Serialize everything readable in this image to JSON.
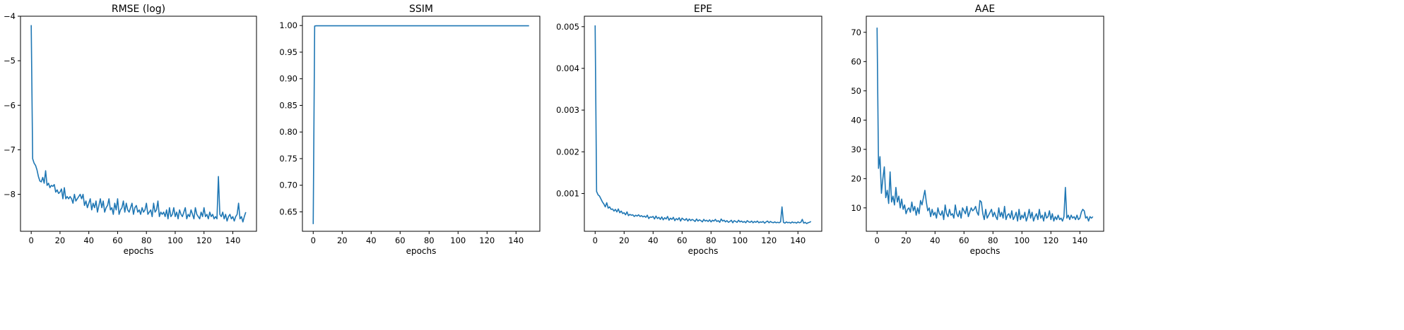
{
  "chart_data": [
    {
      "type": "line",
      "title": "RMSE (log)",
      "xlabel": "epochs",
      "ylabel": "",
      "xlim": [
        -7.45,
        156.45
      ],
      "ylim": [
        -8.83,
        -4.0
      ],
      "xticks": [
        0,
        20,
        40,
        60,
        80,
        100,
        120,
        140
      ],
      "yticks": [
        -8,
        -7,
        -6,
        -5,
        -4
      ],
      "ytick_labels": [
        "−8",
        "−7",
        "−6",
        "−5",
        "−4"
      ],
      "color": "#1f77b4",
      "x": [
        0,
        1,
        2,
        3,
        4,
        5,
        6,
        7,
        8,
        9,
        10,
        11,
        12,
        13,
        14,
        15,
        16,
        17,
        18,
        19,
        20,
        21,
        22,
        23,
        24,
        25,
        26,
        27,
        28,
        29,
        30,
        31,
        32,
        33,
        34,
        35,
        36,
        37,
        38,
        39,
        40,
        41,
        42,
        43,
        44,
        45,
        46,
        47,
        48,
        49,
        50,
        51,
        52,
        53,
        54,
        55,
        56,
        57,
        58,
        59,
        60,
        61,
        62,
        63,
        64,
        65,
        66,
        67,
        68,
        69,
        70,
        71,
        72,
        73,
        74,
        75,
        76,
        77,
        78,
        79,
        80,
        81,
        82,
        83,
        84,
        85,
        86,
        87,
        88,
        89,
        90,
        91,
        92,
        93,
        94,
        95,
        96,
        97,
        98,
        99,
        100,
        101,
        102,
        103,
        104,
        105,
        106,
        107,
        108,
        109,
        110,
        111,
        112,
        113,
        114,
        115,
        116,
        117,
        118,
        119,
        120,
        121,
        122,
        123,
        124,
        125,
        126,
        127,
        128,
        129,
        130,
        131,
        132,
        133,
        134,
        135,
        136,
        137,
        138,
        139,
        140,
        141,
        142,
        143,
        144,
        145,
        146,
        147,
        148,
        149
      ],
      "y": [
        -4.2,
        -7.2,
        -7.3,
        -7.35,
        -7.45,
        -7.6,
        -7.7,
        -7.72,
        -7.62,
        -7.75,
        -7.47,
        -7.8,
        -7.75,
        -7.85,
        -7.8,
        -7.82,
        -7.78,
        -7.95,
        -7.9,
        -7.98,
        -7.95,
        -7.88,
        -8.1,
        -7.85,
        -8.1,
        -8.05,
        -8.1,
        -8.05,
        -8.1,
        -8.2,
        -8.0,
        -8.15,
        -8.1,
        -8.05,
        -8.0,
        -8.1,
        -8.0,
        -8.25,
        -8.15,
        -8.3,
        -8.2,
        -8.1,
        -8.35,
        -8.2,
        -8.3,
        -8.15,
        -8.4,
        -8.25,
        -8.1,
        -8.3,
        -8.15,
        -8.4,
        -8.3,
        -8.25,
        -8.1,
        -8.35,
        -8.3,
        -8.45,
        -8.2,
        -8.35,
        -8.1,
        -8.45,
        -8.35,
        -8.3,
        -8.15,
        -8.4,
        -8.2,
        -8.35,
        -8.4,
        -8.3,
        -8.2,
        -8.45,
        -8.3,
        -8.25,
        -8.4,
        -8.35,
        -8.45,
        -8.3,
        -8.4,
        -8.35,
        -8.2,
        -8.45,
        -8.4,
        -8.35,
        -8.5,
        -8.2,
        -8.4,
        -8.35,
        -8.15,
        -8.5,
        -8.4,
        -8.45,
        -8.4,
        -8.5,
        -8.35,
        -8.55,
        -8.3,
        -8.5,
        -8.45,
        -8.3,
        -8.5,
        -8.4,
        -8.55,
        -8.35,
        -8.45,
        -8.5,
        -8.4,
        -8.3,
        -8.55,
        -8.45,
        -8.5,
        -8.35,
        -8.45,
        -8.55,
        -8.3,
        -8.45,
        -8.5,
        -8.55,
        -8.4,
        -8.5,
        -8.3,
        -8.5,
        -8.45,
        -8.55,
        -8.4,
        -8.5,
        -8.45,
        -8.55,
        -8.5,
        -8.55,
        -7.6,
        -8.45,
        -8.5,
        -8.4,
        -8.55,
        -8.45,
        -8.6,
        -8.5,
        -8.45,
        -8.55,
        -8.5,
        -8.6,
        -8.5,
        -8.45,
        -8.2,
        -8.55,
        -8.5,
        -8.62,
        -8.5,
        -8.4
      ]
    },
    {
      "type": "line",
      "title": "SSIM",
      "xlabel": "epochs",
      "ylabel": "",
      "xlim": [
        -7.45,
        156.45
      ],
      "ylim": [
        0.6135,
        1.0175
      ],
      "xticks": [
        0,
        20,
        40,
        60,
        80,
        100,
        120,
        140
      ],
      "yticks": [
        0.65,
        0.7,
        0.75,
        0.8,
        0.85,
        0.9,
        0.95,
        1.0
      ],
      "ytick_labels": [
        "0.65",
        "0.70",
        "0.75",
        "0.80",
        "0.85",
        "0.90",
        "0.95",
        "1.00"
      ],
      "color": "#1f77b4",
      "x": [
        0,
        1,
        2,
        149
      ],
      "y": [
        0.627,
        0.999,
        0.9995,
        0.9995
      ]
    },
    {
      "type": "line",
      "title": "EPE",
      "xlabel": "epochs",
      "ylabel": "",
      "xlim": [
        -7.45,
        156.45
      ],
      "ylim": [
        9.5e-05,
        0.00525
      ],
      "xticks": [
        0,
        20,
        40,
        60,
        80,
        100,
        120,
        140
      ],
      "yticks": [
        0.001,
        0.002,
        0.003,
        0.004,
        0.005
      ],
      "ytick_labels": [
        "0.001",
        "0.002",
        "0.003",
        "0.004",
        "0.005"
      ],
      "color": "#1f77b4",
      "x": [
        0,
        1,
        2,
        3,
        4,
        5,
        6,
        7,
        8,
        9,
        10,
        11,
        12,
        13,
        14,
        15,
        16,
        17,
        18,
        19,
        20,
        21,
        22,
        23,
        24,
        25,
        26,
        27,
        28,
        29,
        30,
        31,
        32,
        33,
        34,
        35,
        36,
        37,
        38,
        39,
        40,
        41,
        42,
        43,
        44,
        45,
        46,
        47,
        48,
        49,
        50,
        51,
        52,
        53,
        54,
        55,
        56,
        57,
        58,
        59,
        60,
        61,
        62,
        63,
        64,
        65,
        66,
        67,
        68,
        69,
        70,
        71,
        72,
        73,
        74,
        75,
        76,
        77,
        78,
        79,
        80,
        81,
        82,
        83,
        84,
        85,
        86,
        87,
        88,
        89,
        90,
        91,
        92,
        93,
        94,
        95,
        96,
        97,
        98,
        99,
        100,
        101,
        102,
        103,
        104,
        105,
        106,
        107,
        108,
        109,
        110,
        111,
        112,
        113,
        114,
        115,
        116,
        117,
        118,
        119,
        120,
        121,
        122,
        123,
        124,
        125,
        126,
        127,
        128,
        129,
        130,
        131,
        132,
        133,
        134,
        135,
        136,
        137,
        138,
        139,
        140,
        141,
        142,
        143,
        144,
        145,
        146,
        147,
        148,
        149
      ],
      "y": [
        0.00503,
        0.00105,
        0.00097,
        0.00094,
        0.00087,
        0.0008,
        0.00075,
        0.00068,
        0.00078,
        0.00065,
        0.00068,
        0.00062,
        0.00063,
        0.00058,
        0.00062,
        0.00056,
        0.00063,
        0.00054,
        0.00058,
        0.00052,
        0.00054,
        0.00049,
        0.00056,
        0.00047,
        0.0005,
        0.00048,
        0.00049,
        0.00045,
        0.00048,
        0.00046,
        0.00049,
        0.00045,
        0.00047,
        0.00044,
        0.00046,
        0.00043,
        0.00048,
        0.0004,
        0.00044,
        0.00043,
        0.00045,
        0.00039,
        0.00046,
        0.0004,
        0.00043,
        0.00038,
        0.00044,
        0.00037,
        0.00042,
        0.00039,
        0.00045,
        0.00036,
        0.00041,
        0.00038,
        0.00043,
        0.00035,
        0.0004,
        0.00037,
        0.00042,
        0.00034,
        0.00041,
        0.00038,
        0.00036,
        0.0004,
        0.00034,
        0.00039,
        0.00035,
        0.00038,
        0.00036,
        0.00033,
        0.00039,
        0.00034,
        0.00037,
        0.00035,
        0.00032,
        0.00038,
        0.00034,
        0.00036,
        0.00033,
        0.00037,
        0.00032,
        0.00036,
        0.00034,
        0.00038,
        0.00033,
        0.00035,
        0.00031,
        0.00039,
        0.00034,
        0.00036,
        0.00032,
        0.00035,
        0.00031,
        0.00033,
        0.00036,
        0.0003,
        0.00035,
        0.00033,
        0.00031,
        0.00036,
        0.00032,
        0.00034,
        0.00031,
        0.00033,
        0.0003,
        0.00035,
        0.00032,
        0.00031,
        0.00034,
        0.0003,
        0.00033,
        0.00031,
        0.00034,
        0.0003,
        0.00032,
        0.00031,
        0.00033,
        0.00029,
        0.00032,
        0.00034,
        0.0003,
        0.00033,
        0.00031,
        0.0003,
        0.00032,
        0.0003,
        0.00031,
        0.0003,
        0.00032,
        0.00068,
        0.00031,
        0.00029,
        0.00032,
        0.0003,
        0.00031,
        0.00029,
        0.00032,
        0.0003,
        0.00031,
        0.00029,
        0.00032,
        0.0003,
        0.00031,
        0.00038,
        0.00029,
        0.00031,
        0.00028,
        0.0003,
        0.00031,
        0.00033
      ]
    },
    {
      "type": "line",
      "title": "AAE",
      "xlabel": "epochs",
      "ylabel": "",
      "xlim": [
        -7.45,
        156.45
      ],
      "ylim": [
        2.0,
        75.5
      ],
      "xticks": [
        0,
        20,
        40,
        60,
        80,
        100,
        120,
        140
      ],
      "yticks": [
        10,
        20,
        30,
        40,
        50,
        60,
        70
      ],
      "ytick_labels": [
        "10",
        "20",
        "30",
        "40",
        "50",
        "60",
        "70"
      ],
      "color": "#1f77b4",
      "x": [
        0,
        1,
        2,
        3,
        4,
        5,
        6,
        7,
        8,
        9,
        10,
        11,
        12,
        13,
        14,
        15,
        16,
        17,
        18,
        19,
        20,
        21,
        22,
        23,
        24,
        25,
        26,
        27,
        28,
        29,
        30,
        31,
        32,
        33,
        34,
        35,
        36,
        37,
        38,
        39,
        40,
        41,
        42,
        43,
        44,
        45,
        46,
        47,
        48,
        49,
        50,
        51,
        52,
        53,
        54,
        55,
        56,
        57,
        58,
        59,
        60,
        61,
        62,
        63,
        64,
        65,
        66,
        67,
        68,
        69,
        70,
        71,
        72,
        73,
        74,
        75,
        76,
        77,
        78,
        79,
        80,
        81,
        82,
        83,
        84,
        85,
        86,
        87,
        88,
        89,
        90,
        91,
        92,
        93,
        94,
        95,
        96,
        97,
        98,
        99,
        100,
        101,
        102,
        103,
        104,
        105,
        106,
        107,
        108,
        109,
        110,
        111,
        112,
        113,
        114,
        115,
        116,
        117,
        118,
        119,
        120,
        121,
        122,
        123,
        124,
        125,
        126,
        127,
        128,
        129,
        130,
        131,
        132,
        133,
        134,
        135,
        136,
        137,
        138,
        139,
        140,
        141,
        142,
        143,
        144,
        145,
        146,
        147,
        148,
        149
      ],
      "y": [
        71.6,
        23.5,
        27.5,
        15.0,
        20.0,
        24.0,
        13.5,
        16.0,
        11.5,
        22.3,
        12.0,
        14.0,
        11.0,
        17.0,
        12.0,
        14.0,
        10.0,
        13.0,
        9.5,
        11.0,
        8.0,
        9.5,
        10.0,
        8.5,
        12.0,
        9.0,
        10.5,
        7.5,
        10.0,
        8.0,
        12.5,
        11.0,
        13.5,
        16.0,
        12.0,
        9.0,
        10.0,
        7.0,
        9.5,
        7.5,
        8.5,
        6.5,
        10.0,
        8.0,
        7.5,
        9.0,
        6.0,
        11.0,
        8.0,
        7.0,
        9.5,
        7.5,
        8.0,
        6.5,
        11.0,
        8.0,
        7.0,
        9.0,
        6.5,
        10.0,
        9.0,
        8.0,
        10.5,
        7.0,
        8.5,
        10.0,
        9.0,
        9.5,
        10.5,
        8.5,
        7.5,
        12.5,
        12.0,
        8.0,
        6.0,
        9.5,
        6.5,
        7.5,
        8.5,
        9.5,
        7.0,
        8.5,
        7.0,
        6.0,
        10.0,
        7.0,
        8.5,
        6.5,
        10.5,
        6.0,
        7.5,
        8.0,
        6.5,
        9.0,
        6.0,
        7.0,
        8.5,
        5.5,
        9.5,
        6.0,
        7.5,
        6.5,
        8.5,
        5.5,
        7.0,
        9.5,
        6.5,
        8.5,
        5.5,
        7.0,
        8.0,
        6.0,
        9.5,
        6.5,
        7.5,
        5.5,
        8.5,
        6.5,
        7.0,
        9.0,
        6.0,
        8.0,
        5.5,
        7.0,
        6.0,
        7.5,
        6.0,
        6.5,
        5.5,
        7.0,
        17.0,
        6.5,
        7.5,
        6.0,
        7.5,
        6.5,
        7.0,
        6.0,
        7.5,
        6.0,
        6.5,
        8.5,
        9.5,
        9.0,
        6.5,
        7.0,
        5.5,
        7.0,
        6.5,
        7.0
      ]
    }
  ]
}
